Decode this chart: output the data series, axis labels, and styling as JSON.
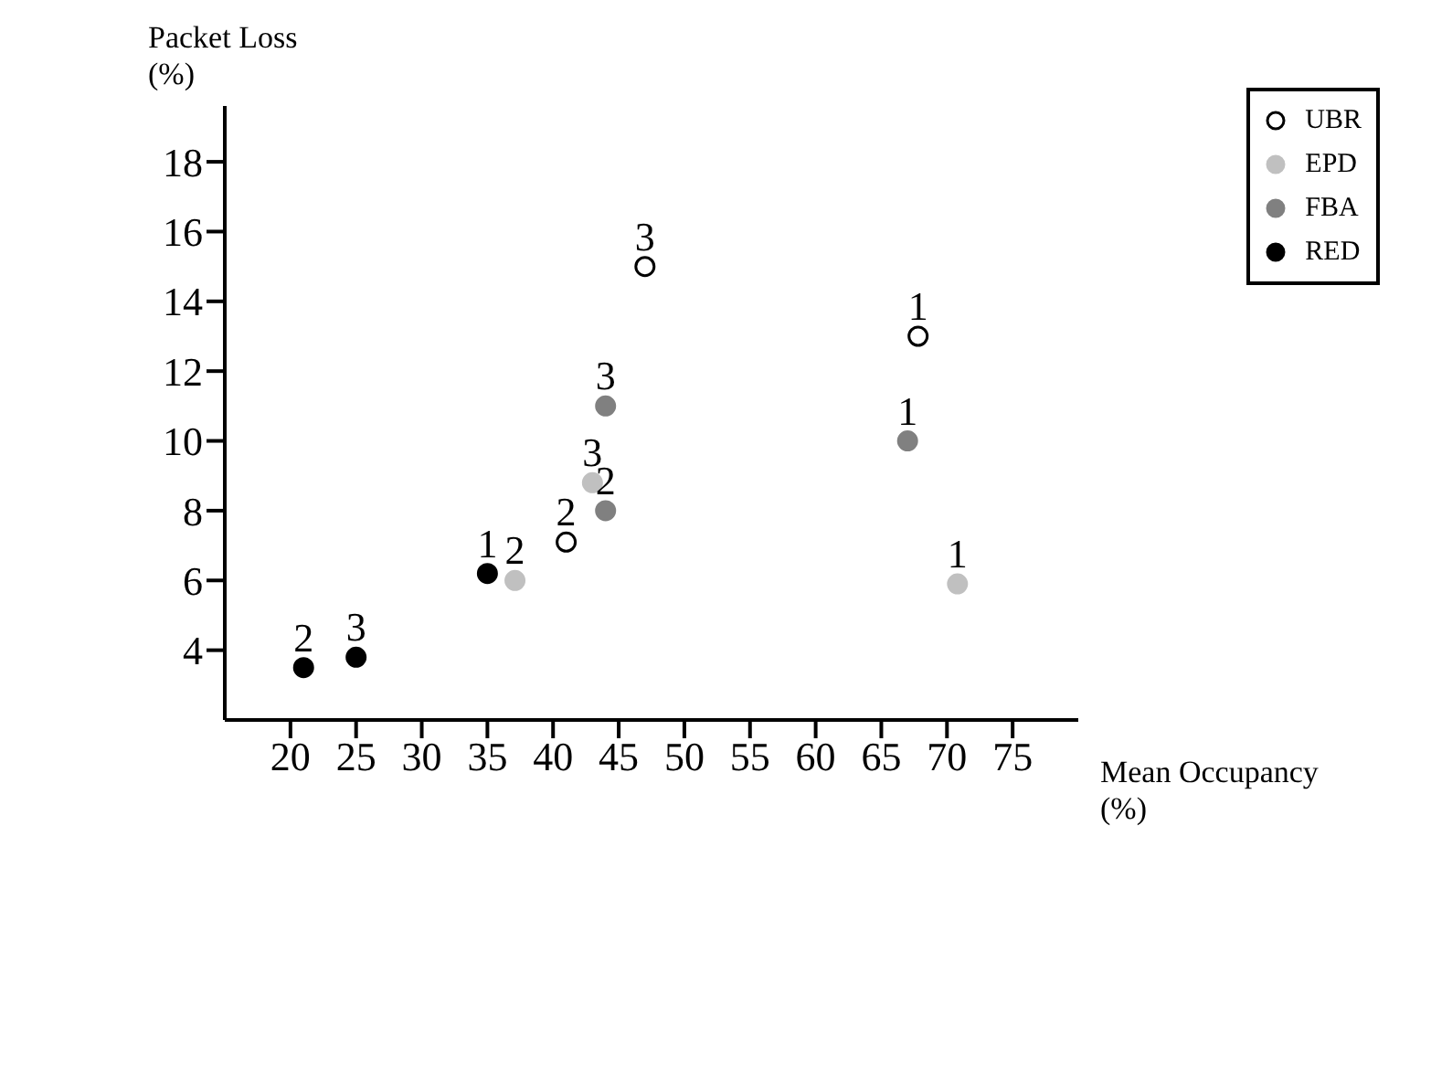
{
  "chart_data": {
    "type": "scatter",
    "xlabel": "Mean Occupancy (%)",
    "ylabel": "Packet Loss (%)",
    "xlim": [
      15,
      80
    ],
    "xticks": [
      20,
      25,
      30,
      35,
      40,
      45,
      50,
      55,
      60,
      65,
      70,
      75
    ],
    "ylim": [
      2,
      19.6
    ],
    "yticks": [
      4,
      6,
      8,
      10,
      12,
      14,
      16,
      18
    ],
    "legend": "top right",
    "grid": false,
    "marker": "circle",
    "series": [
      {
        "name": "UBR",
        "color": "#ffffff",
        "x": [
          67.8,
          41,
          47
        ],
        "values": [
          13.0,
          7.1,
          15.0
        ]
      },
      {
        "name": "EPD",
        "color": "#c0c0c0",
        "x": [
          70.8,
          37.1,
          43
        ],
        "values": [
          5.9,
          6.0,
          8.8
        ]
      },
      {
        "name": "FBA",
        "color": "#808080",
        "x": [
          67,
          44,
          44
        ],
        "values": [
          10.0,
          8.0,
          11.0
        ]
      },
      {
        "name": "RED",
        "color": "#000000",
        "x": [
          35,
          21,
          25
        ],
        "values": [
          6.2,
          3.5,
          3.8
        ]
      }
    ],
    "annotations": [
      {
        "text": "1",
        "x": 67.8,
        "y": 13.0
      },
      {
        "text": "2",
        "x": 41,
        "y": 7.1
      },
      {
        "text": "3",
        "x": 47,
        "y": 15.0
      },
      {
        "text": "1",
        "x": 70.8,
        "y": 5.9
      },
      {
        "text": "2",
        "x": 37.1,
        "y": 6.0
      },
      {
        "text": "3",
        "x": 43,
        "y": 8.8
      },
      {
        "text": "1",
        "x": 67,
        "y": 10.0
      },
      {
        "text": "2",
        "x": 44,
        "y": 8.0
      },
      {
        "text": "3",
        "x": 44,
        "y": 11.0
      },
      {
        "text": "1",
        "x": 35,
        "y": 6.2
      },
      {
        "text": "2",
        "x": 21,
        "y": 3.5
      },
      {
        "text": "3",
        "x": 25,
        "y": 3.8
      }
    ]
  }
}
